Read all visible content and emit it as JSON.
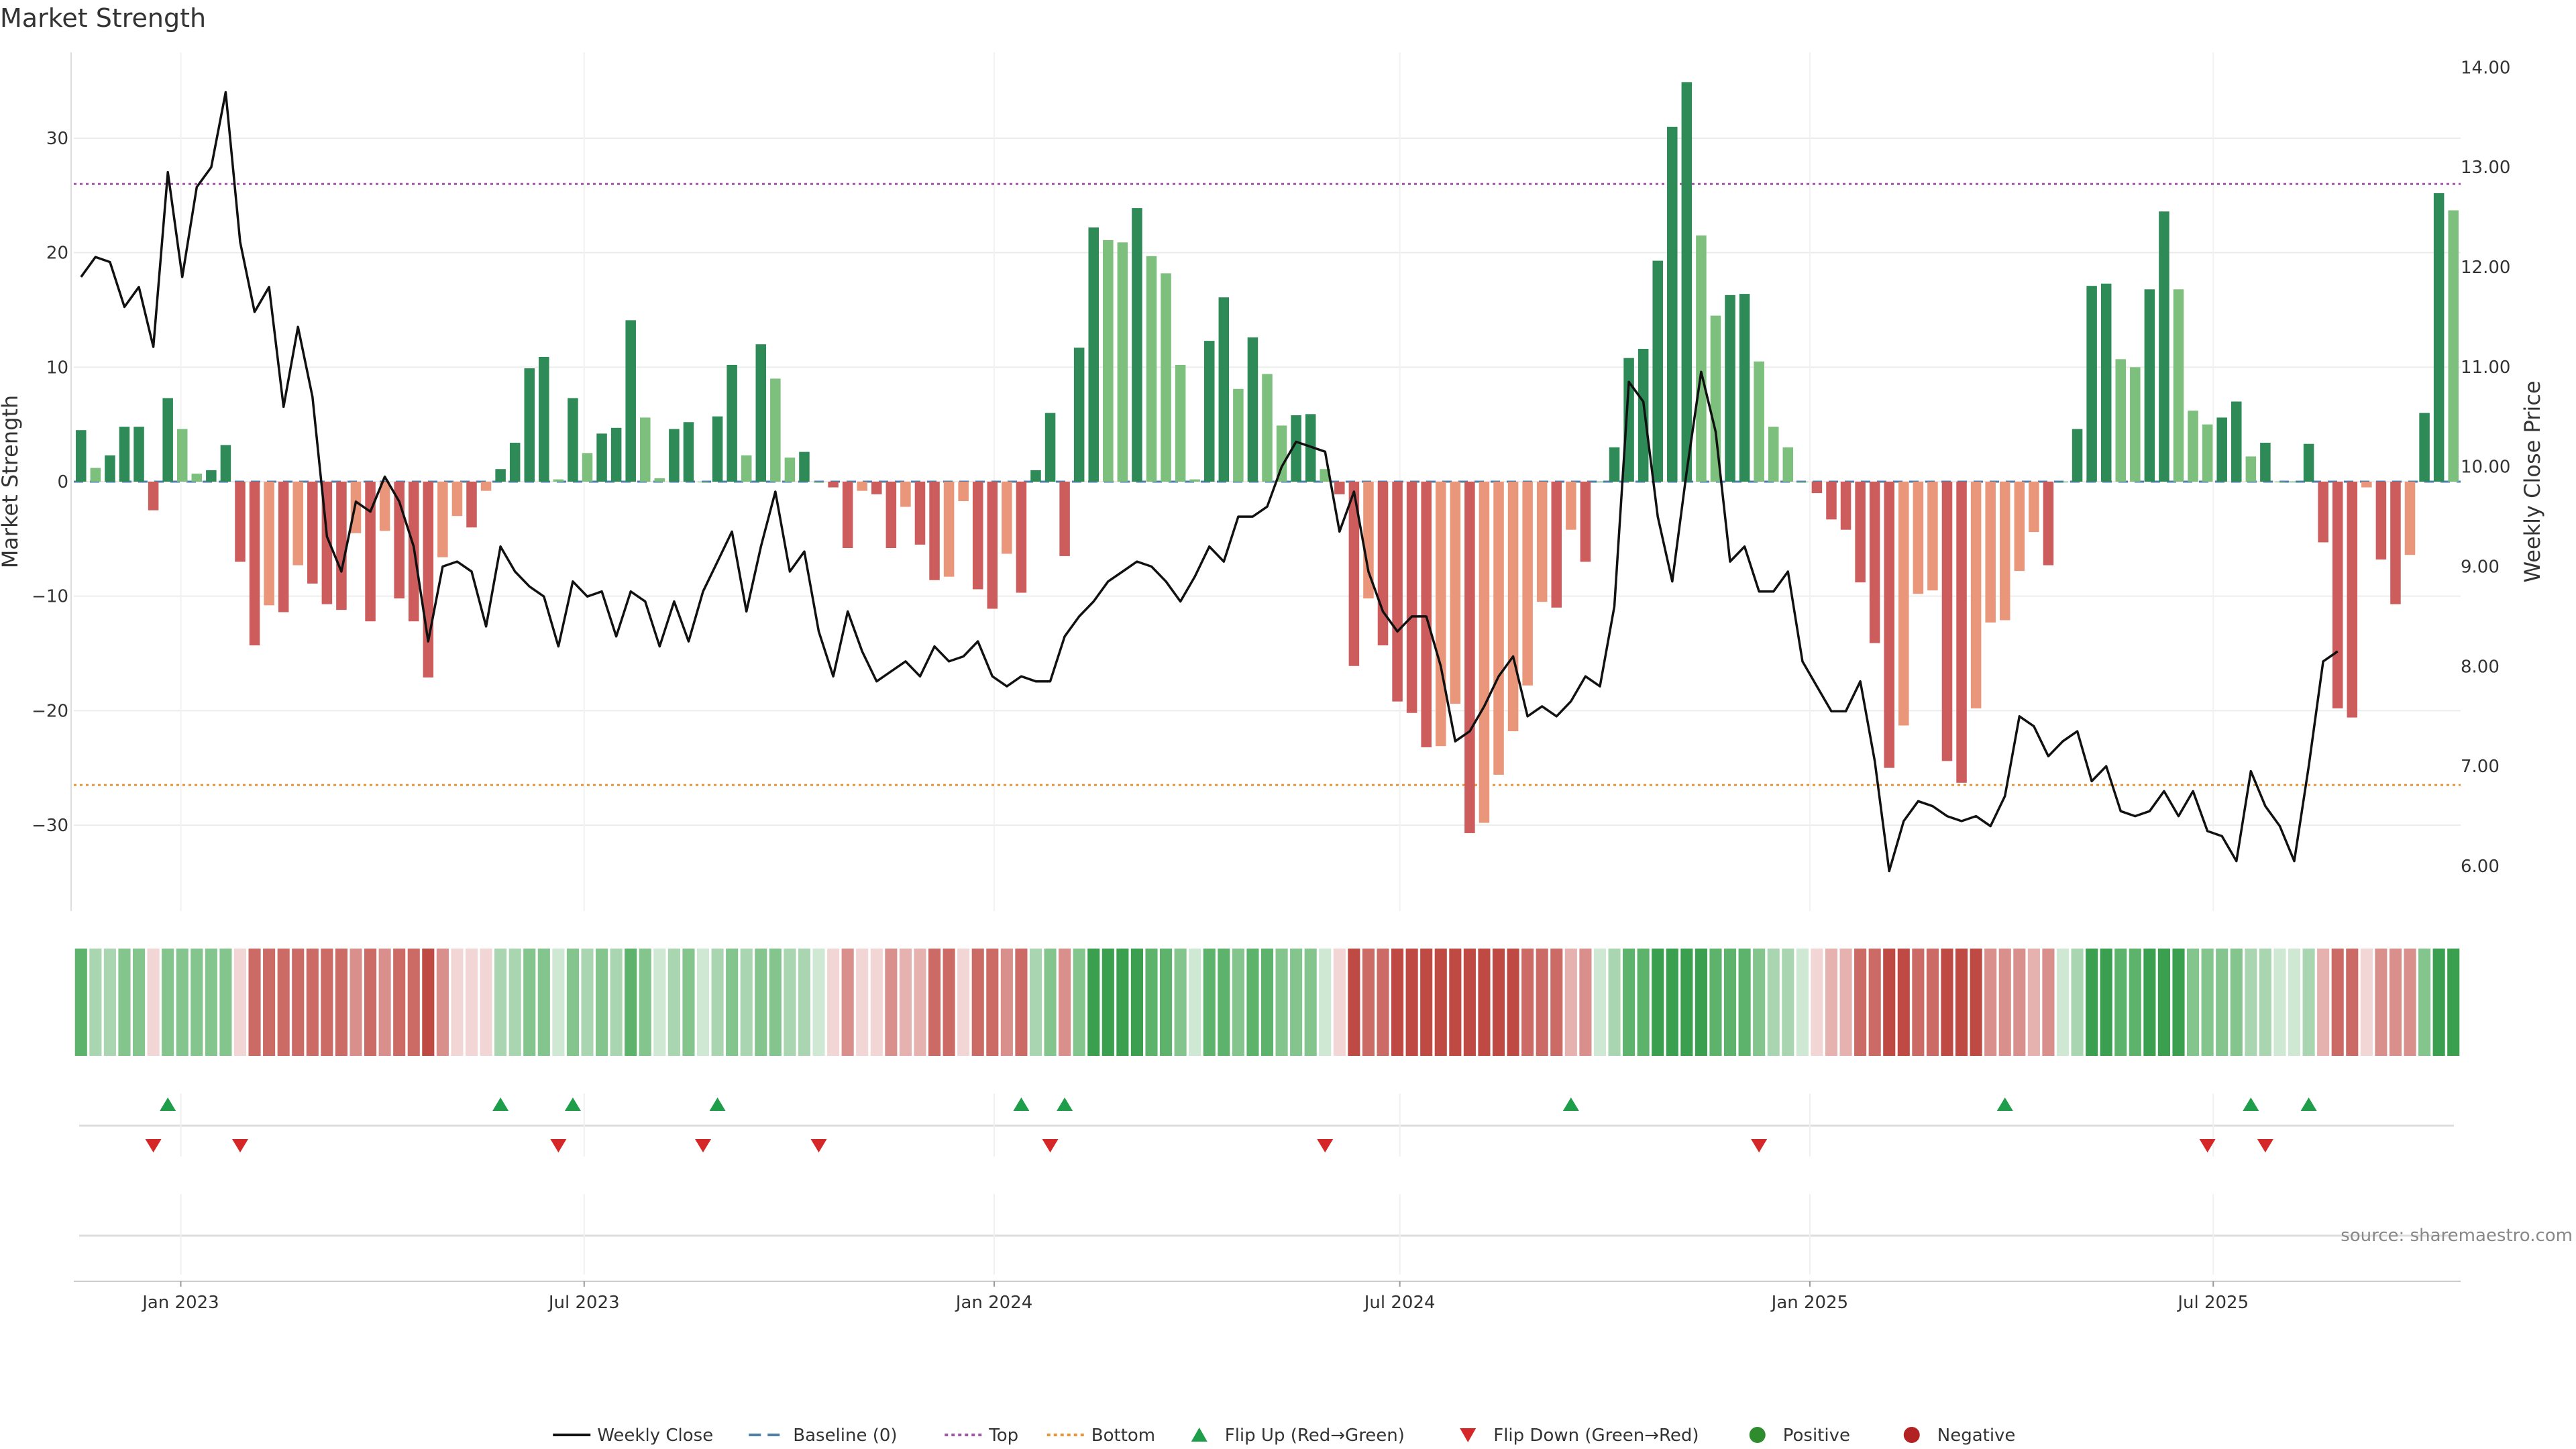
{
  "chart_data": {
    "type": "bar",
    "title": "Market Strength",
    "ylabel_left": "Market Strength",
    "ylabel_right": "Weekly Close Price",
    "source": "source: sharemaestro.com",
    "ylim_left": [
      -37.5,
      37.5
    ],
    "ylim_right": [
      5.55,
      14.15
    ],
    "yticks_left": [
      30,
      20,
      10,
      0,
      -10,
      -20,
      -30
    ],
    "yticks_left_labels": [
      "30",
      "20",
      "10",
      "0",
      "−10",
      "−20",
      "−30"
    ],
    "yticks_right": [
      14,
      13,
      12,
      11,
      10,
      9,
      8,
      7,
      6
    ],
    "yticks_right_labels": [
      "14.00",
      "13.00",
      "12.00",
      "11.00",
      "10.00",
      "9.00",
      "8.00",
      "7.00",
      "6.00"
    ],
    "x_start": "2022-11-14",
    "x_end": "2025-10-20",
    "xticks": [
      {
        "date": "2023-01-01",
        "label": "Jan 2023"
      },
      {
        "date": "2023-07-01",
        "label": "Jul 2023"
      },
      {
        "date": "2024-01-01",
        "label": "Jan 2024"
      },
      {
        "date": "2024-07-01",
        "label": "Jul 2024"
      },
      {
        "date": "2025-01-01",
        "label": "Jan 2025"
      },
      {
        "date": "2025-07-01",
        "label": "Jul 2025"
      }
    ],
    "top_line": 26,
    "bottom_line": -26.5,
    "strength": [
      4.5,
      1.2,
      2.3,
      4.8,
      4.8,
      -2.5,
      7.3,
      4.6,
      0.7,
      1.0,
      3.2,
      -7,
      -14.3,
      -10.8,
      -11.4,
      -7.3,
      -8.9,
      -10.7,
      -11.2,
      -4.5,
      -12.2,
      -4.3,
      -10.2,
      -12.2,
      -17.1,
      -6.6,
      -3,
      -4,
      -0.8,
      1.1,
      3.4,
      9.9,
      10.9,
      0.2,
      7.3,
      2.5,
      4.2,
      4.7,
      14.1,
      5.6,
      0.3,
      4.6,
      5.2,
      0,
      5.7,
      10.2,
      2.3,
      12,
      9,
      2.1,
      2.6,
      0,
      -0.5,
      -5.8,
      -0.8,
      -1.1,
      -5.8,
      -2.2,
      -5.5,
      -8.6,
      -8.3,
      -1.7,
      -9.4,
      -11.1,
      -6.3,
      -9.7,
      1,
      6,
      -6.5,
      11.7,
      22.2,
      21.1,
      20.9,
      23.9,
      19.7,
      18.2,
      10.2,
      0.2,
      12.3,
      16.1,
      8.1,
      12.6,
      9.4,
      4.9,
      5.8,
      5.9,
      1.1,
      -1.1,
      -16.1,
      -10.2,
      -14.3,
      -19.2,
      -20.2,
      -23.2,
      -23.1,
      -19.4,
      -30.7,
      -29.8,
      -25.6,
      -21.8,
      -17.8,
      -10.5,
      -11,
      -4.2,
      -7,
      0,
      3,
      10.8,
      11.6,
      19.3,
      31,
      34.9,
      21.5,
      14.5,
      16.3,
      16.4,
      10.5,
      4.8,
      3,
      0,
      -1,
      -3.3,
      -4.2,
      -8.8,
      -14.1,
      -25,
      -21.3,
      -9.8,
      -9.5,
      -24.4,
      -26.3,
      -19.8,
      -12.3,
      -12.1,
      -7.8,
      -4.4,
      -7.3,
      0,
      4.6,
      17.1,
      17.3,
      10.7,
      10,
      16.8,
      23.6,
      16.8,
      6.2,
      5,
      5.6,
      7,
      2.2,
      3.4,
      0,
      0,
      3.3,
      -5.3,
      -19.8,
      -20.6,
      -0.5,
      -6.8,
      -10.7,
      -6.4,
      6,
      25.2,
      23.7
    ],
    "close": [
      11.9,
      12.1,
      12.05,
      11.6,
      11.8,
      11.2,
      12.95,
      11.9,
      12.8,
      13,
      13.75,
      12.25,
      11.55,
      11.8,
      10.6,
      11.4,
      10.7,
      9.3,
      8.95,
      9.65,
      9.55,
      9.9,
      9.65,
      9.2,
      8.25,
      9.0,
      9.05,
      8.95,
      8.4,
      9.2,
      8.95,
      8.8,
      8.7,
      8.2,
      8.85,
      8.7,
      8.75,
      8.3,
      8.75,
      8.65,
      8.2,
      8.65,
      8.25,
      8.75,
      9.05,
      9.35,
      8.55,
      9.2,
      9.75,
      8.95,
      9.15,
      8.35,
      7.9,
      8.55,
      8.15,
      7.85,
      7.95,
      8.05,
      7.9,
      8.2,
      8.05,
      8.1,
      8.25,
      7.9,
      7.8,
      7.9,
      7.85,
      7.85,
      8.3,
      8.5,
      8.65,
      8.85,
      8.95,
      9.05,
      9.0,
      8.85,
      8.65,
      8.9,
      9.2,
      9.05,
      9.5,
      9.5,
      9.6,
      10.0,
      10.25,
      10.2,
      10.15,
      9.35,
      9.75,
      8.95,
      8.55,
      8.35,
      8.5,
      8.5,
      8.0,
      7.25,
      7.35,
      7.6,
      7.9,
      8.1,
      7.5,
      7.6,
      7.5,
      7.65,
      7.9,
      7.8,
      8.6,
      10.85,
      10.65,
      9.5,
      8.85,
      9.95,
      10.95,
      10.35,
      9.05,
      9.2,
      8.75,
      8.75,
      8.95,
      8.05,
      7.8,
      7.55,
      7.55,
      7.85,
      7.05,
      5.95,
      6.45,
      6.65,
      6.6,
      6.5,
      6.45,
      6.5,
      6.4,
      6.7,
      7.5,
      7.4,
      7.1,
      7.25,
      7.35,
      6.85,
      7.0,
      6.55,
      6.5,
      6.55,
      6.75,
      6.5,
      6.75,
      6.35,
      6.3,
      6.05,
      6.95,
      6.6,
      6.4,
      6.05,
      7.0,
      8.05,
      8.15
    ],
    "ribbon_levels": [
      4,
      2,
      2,
      3,
      3,
      1,
      3,
      3,
      3,
      3,
      3,
      1,
      4,
      4,
      4,
      4,
      4,
      4,
      4,
      3,
      4,
      3,
      4,
      4,
      5,
      3,
      1,
      1,
      1,
      2,
      2,
      3,
      3,
      1,
      3,
      2,
      3,
      2,
      4,
      3,
      1,
      2,
      3,
      1,
      2,
      3,
      2,
      3,
      3,
      2,
      2,
      1,
      1,
      3,
      1,
      1,
      3,
      2,
      2,
      4,
      4,
      1,
      4,
      4,
      3,
      4,
      2,
      3,
      3,
      3,
      5,
      5,
      5,
      5,
      4,
      4,
      3,
      1,
      4,
      4,
      3,
      4,
      4,
      3,
      3,
      3,
      1,
      1,
      5,
      4,
      4,
      5,
      5,
      5,
      5,
      5,
      6,
      6,
      5,
      5,
      4,
      4,
      4,
      2,
      3,
      1,
      2,
      4,
      4,
      5,
      6,
      6,
      5,
      4,
      4,
      4,
      3,
      2,
      2,
      1,
      1,
      2,
      2,
      4,
      4,
      5,
      5,
      4,
      4,
      5,
      5,
      5,
      3,
      3,
      3,
      2,
      3,
      1,
      2,
      5,
      5,
      4,
      4,
      5,
      5,
      5,
      3,
      3,
      3,
      3,
      2,
      2,
      1,
      1,
      2,
      2,
      4,
      4,
      1,
      3,
      3,
      3,
      3,
      6,
      6
    ],
    "flip_up_idx": [
      6,
      29,
      34,
      44,
      65,
      68,
      103,
      133,
      150,
      154
    ],
    "flip_down_idx": [
      5,
      11,
      33,
      43,
      51,
      67,
      86,
      116,
      147,
      151
    ],
    "legend": [
      {
        "label": "Weekly Close",
        "kind": "line",
        "color": "#111111"
      },
      {
        "label": "Baseline (0)",
        "kind": "dash",
        "color": "#4f7fa8"
      },
      {
        "label": "Top",
        "kind": "dot",
        "color": "#a055a8"
      },
      {
        "label": "Bottom",
        "kind": "dot",
        "color": "#e8953a"
      },
      {
        "label": "Flip Up (Red→Green)",
        "kind": "triangle-up",
        "color": "#1e9e4a"
      },
      {
        "label": "Flip Down (Green→Red)",
        "kind": "triangle-down",
        "color": "#d62728"
      },
      {
        "label": "Positive",
        "kind": "circle",
        "color": "#2e8b2e"
      },
      {
        "label": "Negative",
        "kind": "circle",
        "color": "#b22222"
      }
    ],
    "colors": {
      "pos_strong": "#2e8b57",
      "pos_weak": "#7dbf7d",
      "neg_strong": "#cd5c5c",
      "neg_weak": "#e9967a",
      "ribbon_green": [
        "#cfe8d3",
        "#a9d6b0",
        "#84c48d",
        "#5db26c",
        "#3a9f4e"
      ],
      "ribbon_red": [
        "#f2d6d5",
        "#e6b2af",
        "#d98f8b",
        "#cc6b66",
        "#bf4a44"
      ],
      "top": "#a055a8",
      "bottom": "#e8953a",
      "baseline": "#4f7fa8",
      "close": "#111111"
    }
  }
}
